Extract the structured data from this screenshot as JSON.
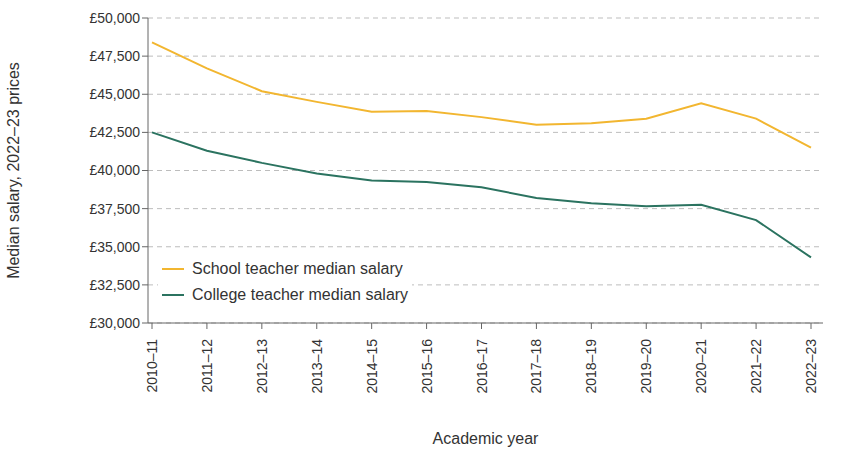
{
  "chart_data": {
    "type": "line",
    "x_label": "Academic year",
    "y_label": "Median salary, 2022–23 prices",
    "categories": [
      "2010–11",
      "2011–12",
      "2012–13",
      "2013–14",
      "2014–15",
      "2015–16",
      "2016–17",
      "2017–18",
      "2018–19",
      "2019–20",
      "2020–21",
      "2021–22",
      "2022–23"
    ],
    "series": [
      {
        "name": "School teacher median salary",
        "color": "#f2b630",
        "values": [
          48400,
          46700,
          45200,
          44500,
          43850,
          43900,
          43500,
          43000,
          43100,
          43400,
          44400,
          43400,
          41500
        ]
      },
      {
        "name": "College teacher median salary",
        "color": "#2b7360",
        "values": [
          42500,
          41300,
          40500,
          39800,
          39350,
          39250,
          38900,
          38200,
          37850,
          37650,
          37750,
          36750,
          34300
        ]
      }
    ],
    "ylim": [
      30000,
      50000
    ],
    "yticks": [
      {
        "value": 30000,
        "label": "£30,000"
      },
      {
        "value": 32500,
        "label": "£32,500"
      },
      {
        "value": 35000,
        "label": "£35,000"
      },
      {
        "value": 37500,
        "label": "£37,500"
      },
      {
        "value": 40000,
        "label": "£40,000"
      },
      {
        "value": 42500,
        "label": "£42,500"
      },
      {
        "value": 45000,
        "label": "£45,000"
      },
      {
        "value": 47500,
        "label": "£47,500"
      },
      {
        "value": 50000,
        "label": "£50,000"
      }
    ],
    "grid": true,
    "legend": "lower left"
  }
}
